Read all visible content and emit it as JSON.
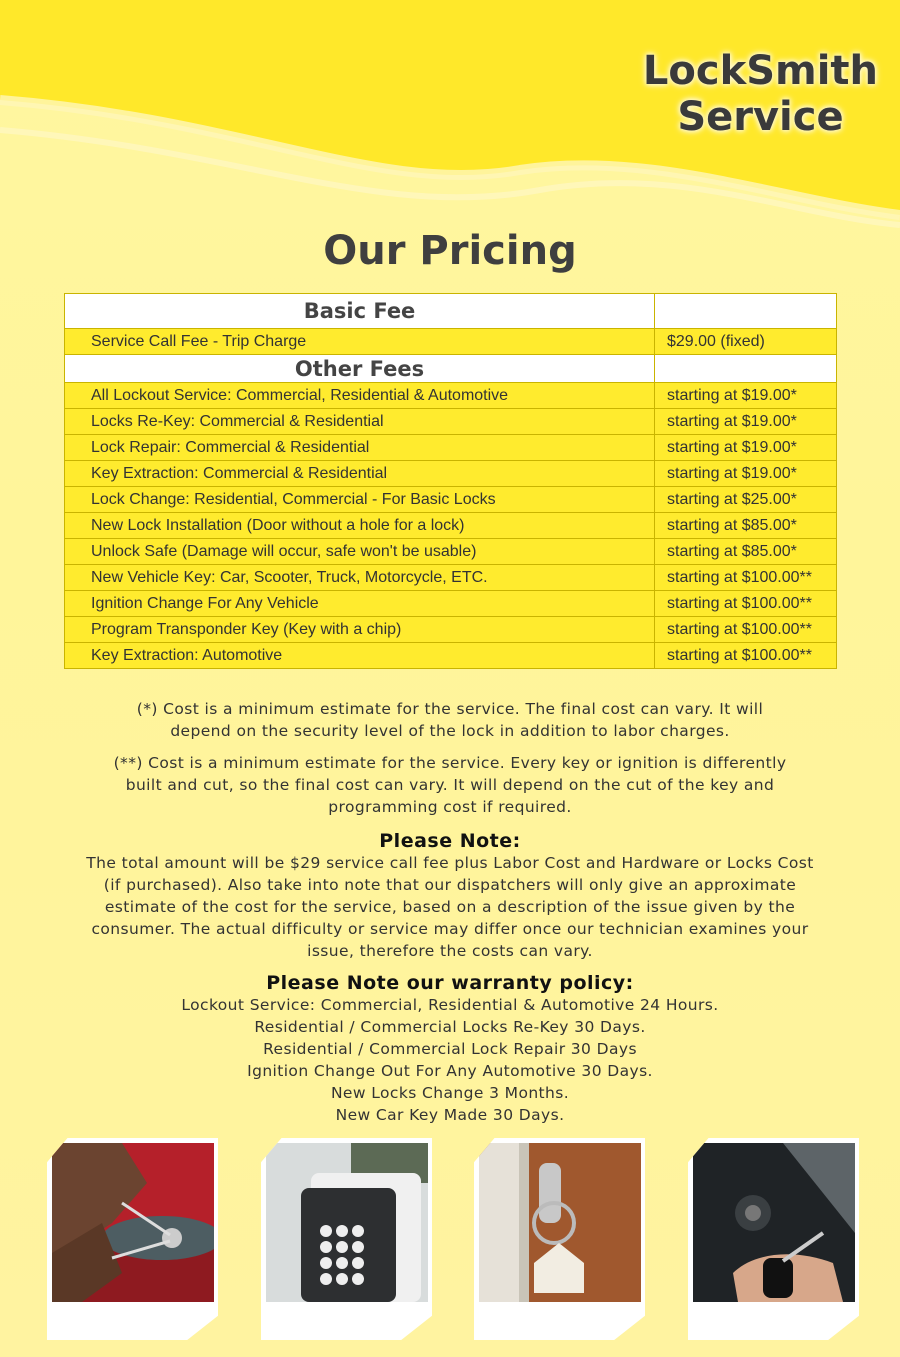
{
  "brand": {
    "line1": "LockSmith",
    "line2": "Service"
  },
  "title": "Our Pricing",
  "table": {
    "basic_header": "Basic Fee",
    "basic_rows": [
      {
        "service": "Service Call Fee - Trip Charge",
        "price": "$29.00 (fixed)"
      }
    ],
    "other_header": "Other Fees",
    "other_rows": [
      {
        "service": "All Lockout Service: Commercial, Residential & Automotive",
        "price": "starting at $19.00*"
      },
      {
        "service": "Locks Re-Key: Commercial & Residential",
        "price": "starting at $19.00*"
      },
      {
        "service": "Lock Repair: Commercial & Residential",
        "price": "starting at $19.00*"
      },
      {
        "service": "Key Extraction: Commercial & Residential",
        "price": "starting at $19.00*"
      },
      {
        "service": "Lock Change: Residential, Commercial - For Basic Locks",
        "price": "starting at $25.00*"
      },
      {
        "service": "New Lock Installation (Door without a hole for a lock)",
        "price": "starting at $85.00*"
      },
      {
        "service": "Unlock Safe (Damage will occur, safe won't be usable)",
        "price": "starting at $85.00*"
      },
      {
        "service": "New Vehicle Key: Car, Scooter, Truck, Motorcycle, ETC.",
        "price": "starting at $100.00**"
      },
      {
        "service": "Ignition Change For Any Vehicle",
        "price": "starting at $100.00**"
      },
      {
        "service": "Program Transponder Key (Key with a chip)",
        "price": "starting at $100.00**"
      },
      {
        "service": "Key Extraction: Automotive",
        "price": "starting at $100.00**"
      }
    ]
  },
  "footnotes": {
    "single": [
      "(*) Cost is a minimum estimate for the service. The final cost can vary. It will",
      "depend on the security level of the lock in addition to labor charges."
    ],
    "double": [
      "(**) Cost is a minimum estimate for the service. Every key or ignition is differently",
      "built and cut, so the final cost can vary. It will depend on the cut of the key and",
      "programming cost if required."
    ]
  },
  "note": {
    "heading": "Please Note:",
    "lines": [
      "The total amount will be $29 service call fee plus Labor Cost and Hardware or Locks Cost",
      "(if purchased). Also take into note that our dispatchers will only give an approximate",
      "estimate of the cost for the service, based on a description of the issue given by the",
      "consumer. The actual difficulty or service may differ once our technician examines your",
      "issue, therefore the costs can vary."
    ]
  },
  "warranty": {
    "heading": "Please Note our warranty policy:",
    "lines": [
      "Lockout Service: Commercial, Residential & Automotive 24 Hours.",
      "Residential / Commercial Locks Re-Key 30 Days.",
      "Residential / Commercial Lock Repair 30 Days",
      "Ignition Change Out For Any Automotive 30 Days.",
      "New Locks Change 3 Months.",
      "New Car Key Made 30 Days."
    ]
  },
  "colors": {
    "row": "#ffeb2e",
    "background": "#fff59a",
    "border": "#c9b400"
  }
}
